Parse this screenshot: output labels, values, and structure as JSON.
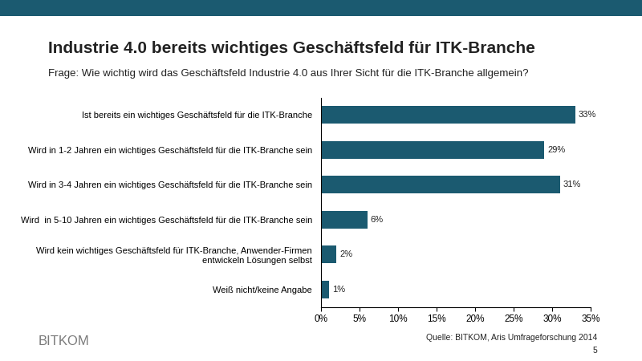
{
  "chart_data": {
    "type": "bar",
    "orientation": "horizontal",
    "title": "Industrie 4.0 bereits wichtiges Geschäftsfeld für ITK-Branche",
    "subtitle": "Frage: Wie wichtig wird das Geschäftsfeld Industrie 4.0 aus Ihrer Sicht für die ITK-Branche allgemein?",
    "categories": [
      "Ist bereits ein wichtiges Geschäftsfeld für die ITK-Branche",
      "Wird in 1-2 Jahren ein wichtiges Geschäftsfeld für die ITK-Branche sein",
      "Wird in 3-4 Jahren ein wichtiges Geschäftsfeld für die ITK-Branche sein",
      "Wird  in 5-10 Jahren ein wichtiges Geschäftsfeld für die ITK-Branche sein",
      "Wird kein wichtiges Geschäftsfeld für ITK-Branche, Anwender-Firmen\nentwickeln Lösungen selbst",
      "Weiß nicht/keine Angabe"
    ],
    "values": [
      33,
      29,
      31,
      6,
      2,
      1
    ],
    "value_labels": [
      "33%",
      "29%",
      "31%",
      "6%",
      "2%",
      "1%"
    ],
    "data_labels": true,
    "color": "#1b5a70",
    "xlim": [
      0,
      35
    ],
    "xticks": [
      {
        "value": 0,
        "label": "0%"
      },
      {
        "value": 5,
        "label": "5%"
      },
      {
        "value": 10,
        "label": "10%"
      },
      {
        "value": 15,
        "label": "15%"
      },
      {
        "value": 20,
        "label": "20%"
      },
      {
        "value": 25,
        "label": "25%"
      },
      {
        "value": 30,
        "label": "30%"
      },
      {
        "value": 35,
        "label": "35%"
      }
    ],
    "grid": false,
    "annotations": [
      "Quelle: BITKOM, Aris Umfrageforschung 2014",
      "5",
      "BITKOM"
    ]
  }
}
